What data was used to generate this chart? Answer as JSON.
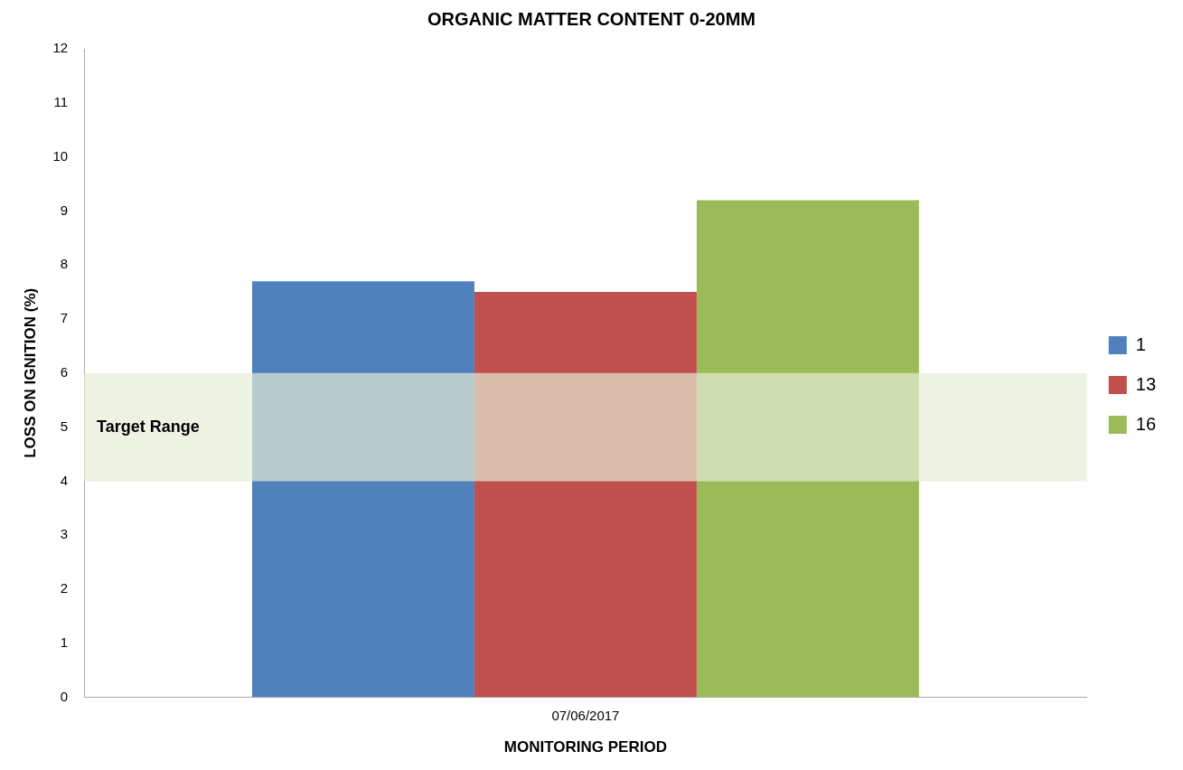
{
  "chart_data": {
    "type": "bar",
    "title": "ORGANIC MATTER CONTENT 0-20MM",
    "xlabel": "MONITORING PERIOD",
    "ylabel": "LOSS ON IGNITION (%)",
    "categories": [
      "07/06/2017"
    ],
    "series": [
      {
        "name": "1",
        "color": "#4f81bd",
        "values": [
          7.7
        ]
      },
      {
        "name": "13",
        "color": "#c0504d",
        "values": [
          7.5
        ]
      },
      {
        "name": "16",
        "color": "#9bbb59",
        "values": [
          9.2
        ]
      }
    ],
    "ylim": [
      0,
      12
    ],
    "yticks": [
      0,
      1,
      2,
      3,
      4,
      5,
      6,
      7,
      8,
      9,
      10,
      11,
      12
    ],
    "grid": false,
    "legend": "right",
    "bands": [
      {
        "axis": "y",
        "from": 4,
        "to": 6,
        "label": "Target Range",
        "color": "#e6edd6"
      }
    ]
  }
}
